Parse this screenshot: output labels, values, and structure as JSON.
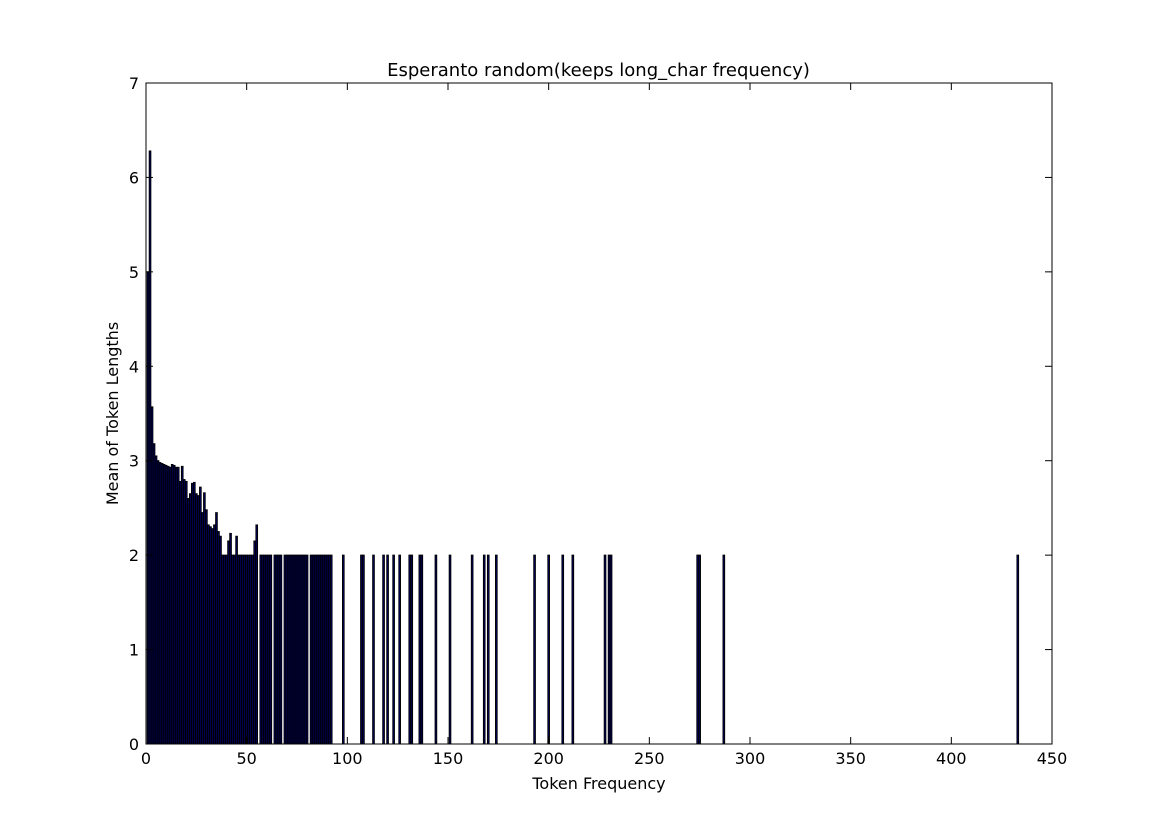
{
  "chart_data": {
    "type": "bar",
    "title": "Esperanto random(keeps long_char frequency)",
    "xlabel": "Token Frequency",
    "ylabel": "Mean of Token Lengths",
    "xlim": [
      0,
      450
    ],
    "ylim": [
      0,
      7
    ],
    "xticks": [
      0,
      50,
      100,
      150,
      200,
      250,
      300,
      350,
      400,
      450
    ],
    "yticks": [
      0,
      1,
      2,
      3,
      4,
      5,
      6,
      7
    ],
    "grid": false,
    "legend": "none",
    "bar_color": "#000080",
    "bar_edge_color": "#000000",
    "series": [
      {
        "x": [
          1,
          2,
          3,
          4,
          5,
          6,
          7,
          8,
          9,
          10,
          11,
          12,
          13,
          14,
          15,
          16,
          17,
          18,
          19,
          20,
          21,
          22,
          23,
          24,
          25,
          26,
          27,
          28,
          29,
          30,
          31,
          32,
          33,
          34,
          35,
          36,
          37,
          38,
          39,
          40,
          41,
          42,
          43,
          44,
          45,
          46,
          47,
          48,
          49,
          50,
          51,
          52,
          53,
          54,
          55,
          57,
          58,
          59,
          60,
          61,
          62,
          64,
          65,
          66,
          67,
          69,
          70,
          71,
          72,
          73,
          74,
          75,
          76,
          77,
          78,
          79,
          80,
          82,
          83,
          84,
          85,
          86,
          87,
          88,
          89,
          90,
          91,
          92,
          98,
          107,
          108,
          113,
          118,
          120,
          123,
          126,
          131,
          132,
          136,
          137,
          144,
          151,
          162,
          168,
          170,
          174,
          193,
          200,
          207,
          212,
          228,
          230,
          231,
          274,
          275,
          287,
          433
        ],
        "y": [
          5.0,
          6.28,
          3.57,
          3.18,
          3.05,
          3.0,
          2.98,
          2.97,
          2.96,
          2.95,
          2.94,
          2.93,
          2.96,
          2.95,
          2.93,
          2.93,
          2.78,
          2.94,
          2.8,
          2.78,
          2.6,
          2.65,
          2.76,
          2.77,
          2.65,
          2.63,
          2.72,
          2.45,
          2.66,
          2.48,
          2.32,
          2.3,
          2.28,
          2.32,
          2.45,
          2.25,
          2.2,
          2.0,
          2.0,
          2.0,
          2.15,
          2.23,
          2.0,
          2.0,
          2.2,
          2.0,
          2.0,
          2.0,
          2.0,
          2.0,
          2.0,
          2.0,
          2.0,
          2.15,
          2.32,
          2.0,
          2.0,
          2.0,
          2.0,
          2.0,
          2.0,
          2.0,
          2.0,
          2.0,
          2.0,
          2.0,
          2.0,
          2.0,
          2.0,
          2.0,
          2.0,
          2.0,
          2.0,
          2.0,
          2.0,
          2.0,
          2.0,
          2.0,
          2.0,
          2.0,
          2.0,
          2.0,
          2.0,
          2.0,
          2.0,
          2.0,
          2.0,
          2.0,
          2.0,
          2.0,
          2.0,
          2.0,
          2.0,
          2.0,
          2.0,
          2.0,
          2.0,
          2.0,
          2.0,
          2.0,
          2.0,
          2.0,
          2.0,
          2.0,
          2.0,
          2.0,
          2.0,
          2.0,
          2.0,
          2.0,
          2.0,
          2.0,
          2.0,
          2.0,
          2.0,
          2.0,
          2.0
        ]
      }
    ]
  }
}
